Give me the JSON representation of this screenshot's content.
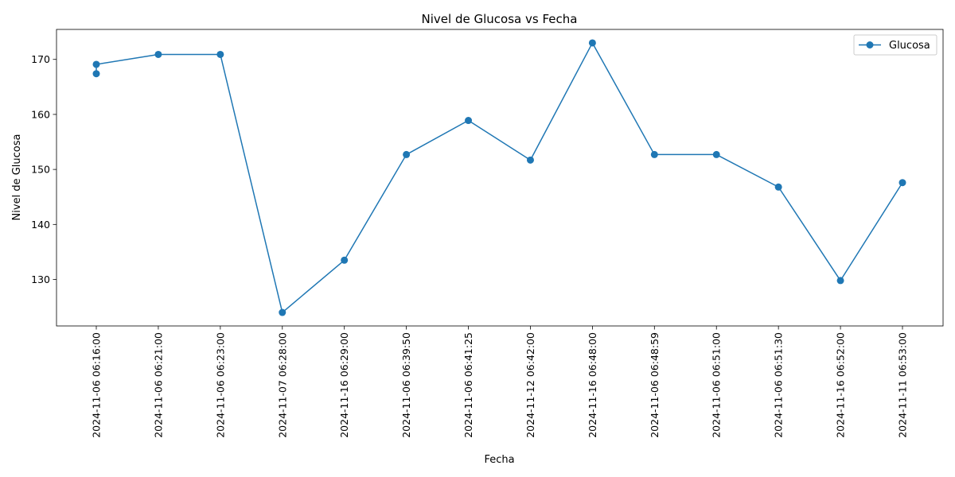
{
  "chart_data": {
    "type": "line",
    "title": "Nivel de Glucosa vs Fecha",
    "xlabel": "Fecha",
    "ylabel": "Nivel de Glucosa",
    "categories": [
      "2024-11-06 06:16:00",
      "2024-11-06 06:21:00",
      "2024-11-06 06:23:00",
      "2024-11-07 06:28:00",
      "2024-11-16 06:29:00",
      "2024-11-06 06:39:50",
      "2024-11-06 06:41:25",
      "2024-11-12 06:42:00",
      "2024-11-16 06:48:00",
      "2024-11-06 06:48:59",
      "2024-11-06 06:51:00",
      "2024-11-06 06:51:30",
      "2024-11-16 06:52:00",
      "2024-11-11 06:53:00"
    ],
    "series": [
      {
        "name": "Glucosa",
        "points": [
          {
            "x": "2024-11-06 06:16:00",
            "y": 167.4
          },
          {
            "x": "2024-11-06 06:16:00",
            "y": 169.1
          },
          {
            "x": "2024-11-06 06:21:00",
            "y": 170.9
          },
          {
            "x": "2024-11-06 06:23:00",
            "y": 170.9
          },
          {
            "x": "2024-11-07 06:28:00",
            "y": 124.0
          },
          {
            "x": "2024-11-16 06:29:00",
            "y": 133.5
          },
          {
            "x": "2024-11-06 06:39:50",
            "y": 152.7
          },
          {
            "x": "2024-11-06 06:41:25",
            "y": 158.9
          },
          {
            "x": "2024-11-12 06:42:00",
            "y": 151.7
          },
          {
            "x": "2024-11-16 06:48:00",
            "y": 173.0
          },
          {
            "x": "2024-11-06 06:48:59",
            "y": 152.7
          },
          {
            "x": "2024-11-06 06:51:00",
            "y": 152.7
          },
          {
            "x": "2024-11-06 06:51:30",
            "y": 146.8
          },
          {
            "x": "2024-11-16 06:52:00",
            "y": 129.8
          },
          {
            "x": "2024-11-11 06:53:00",
            "y": 147.6
          }
        ]
      }
    ],
    "y_ticks": [
      130,
      140,
      150,
      160,
      170
    ],
    "ylim": [
      121.55,
      175.45
    ],
    "grid": false,
    "legend_position": "top-right",
    "colors": {
      "series": "#1f77b4",
      "axis": "#000000",
      "background": "#ffffff"
    }
  }
}
